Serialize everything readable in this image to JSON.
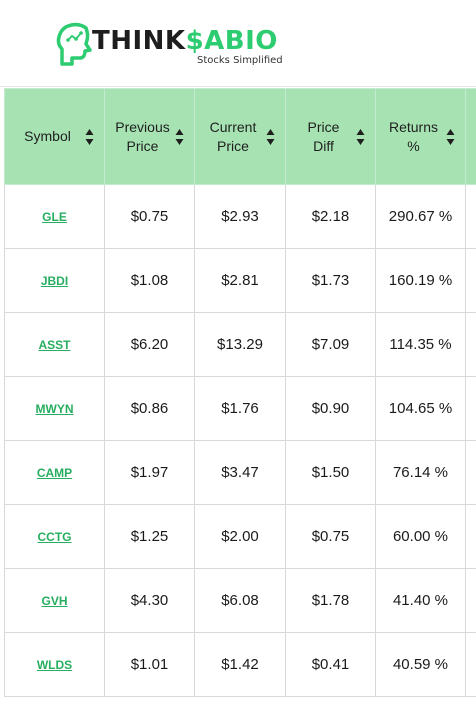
{
  "brand": {
    "name_part1": "THINK",
    "name_part2": "$ABIO",
    "tagline": "Stocks Simplified",
    "accent_color": "#2ecc71"
  },
  "table": {
    "headers": {
      "symbol": "Symbol",
      "previous_price_l1": "Previous",
      "previous_price_l2": "Price",
      "current_price_l1": "Current",
      "current_price_l2": "Price",
      "price_diff_l1": "Price",
      "price_diff_l2": "Diff",
      "returns_l1": "Returns",
      "returns_l2": "%"
    },
    "sort_icon": "sort-up-down-icon",
    "rows": [
      {
        "symbol": "GLE",
        "previous": "$0.75",
        "current": "$2.93",
        "diff": "$2.18",
        "returns": "290.67 %"
      },
      {
        "symbol": "JBDI",
        "previous": "$1.08",
        "current": "$2.81",
        "diff": "$1.73",
        "returns": "160.19 %"
      },
      {
        "symbol": "ASST",
        "previous": "$6.20",
        "current": "$13.29",
        "diff": "$7.09",
        "returns": "114.35 %"
      },
      {
        "symbol": "MWYN",
        "previous": "$0.86",
        "current": "$1.76",
        "diff": "$0.90",
        "returns": "104.65 %"
      },
      {
        "symbol": "CAMP",
        "previous": "$1.97",
        "current": "$3.47",
        "diff": "$1.50",
        "returns": "76.14 %"
      },
      {
        "symbol": "CCTG",
        "previous": "$1.25",
        "current": "$2.00",
        "diff": "$0.75",
        "returns": "60.00 %"
      },
      {
        "symbol": "GVH",
        "previous": "$4.30",
        "current": "$6.08",
        "diff": "$1.78",
        "returns": "41.40 %"
      },
      {
        "symbol": "WLDS",
        "previous": "$1.01",
        "current": "$1.42",
        "diff": "$0.41",
        "returns": "40.59 %"
      }
    ]
  }
}
